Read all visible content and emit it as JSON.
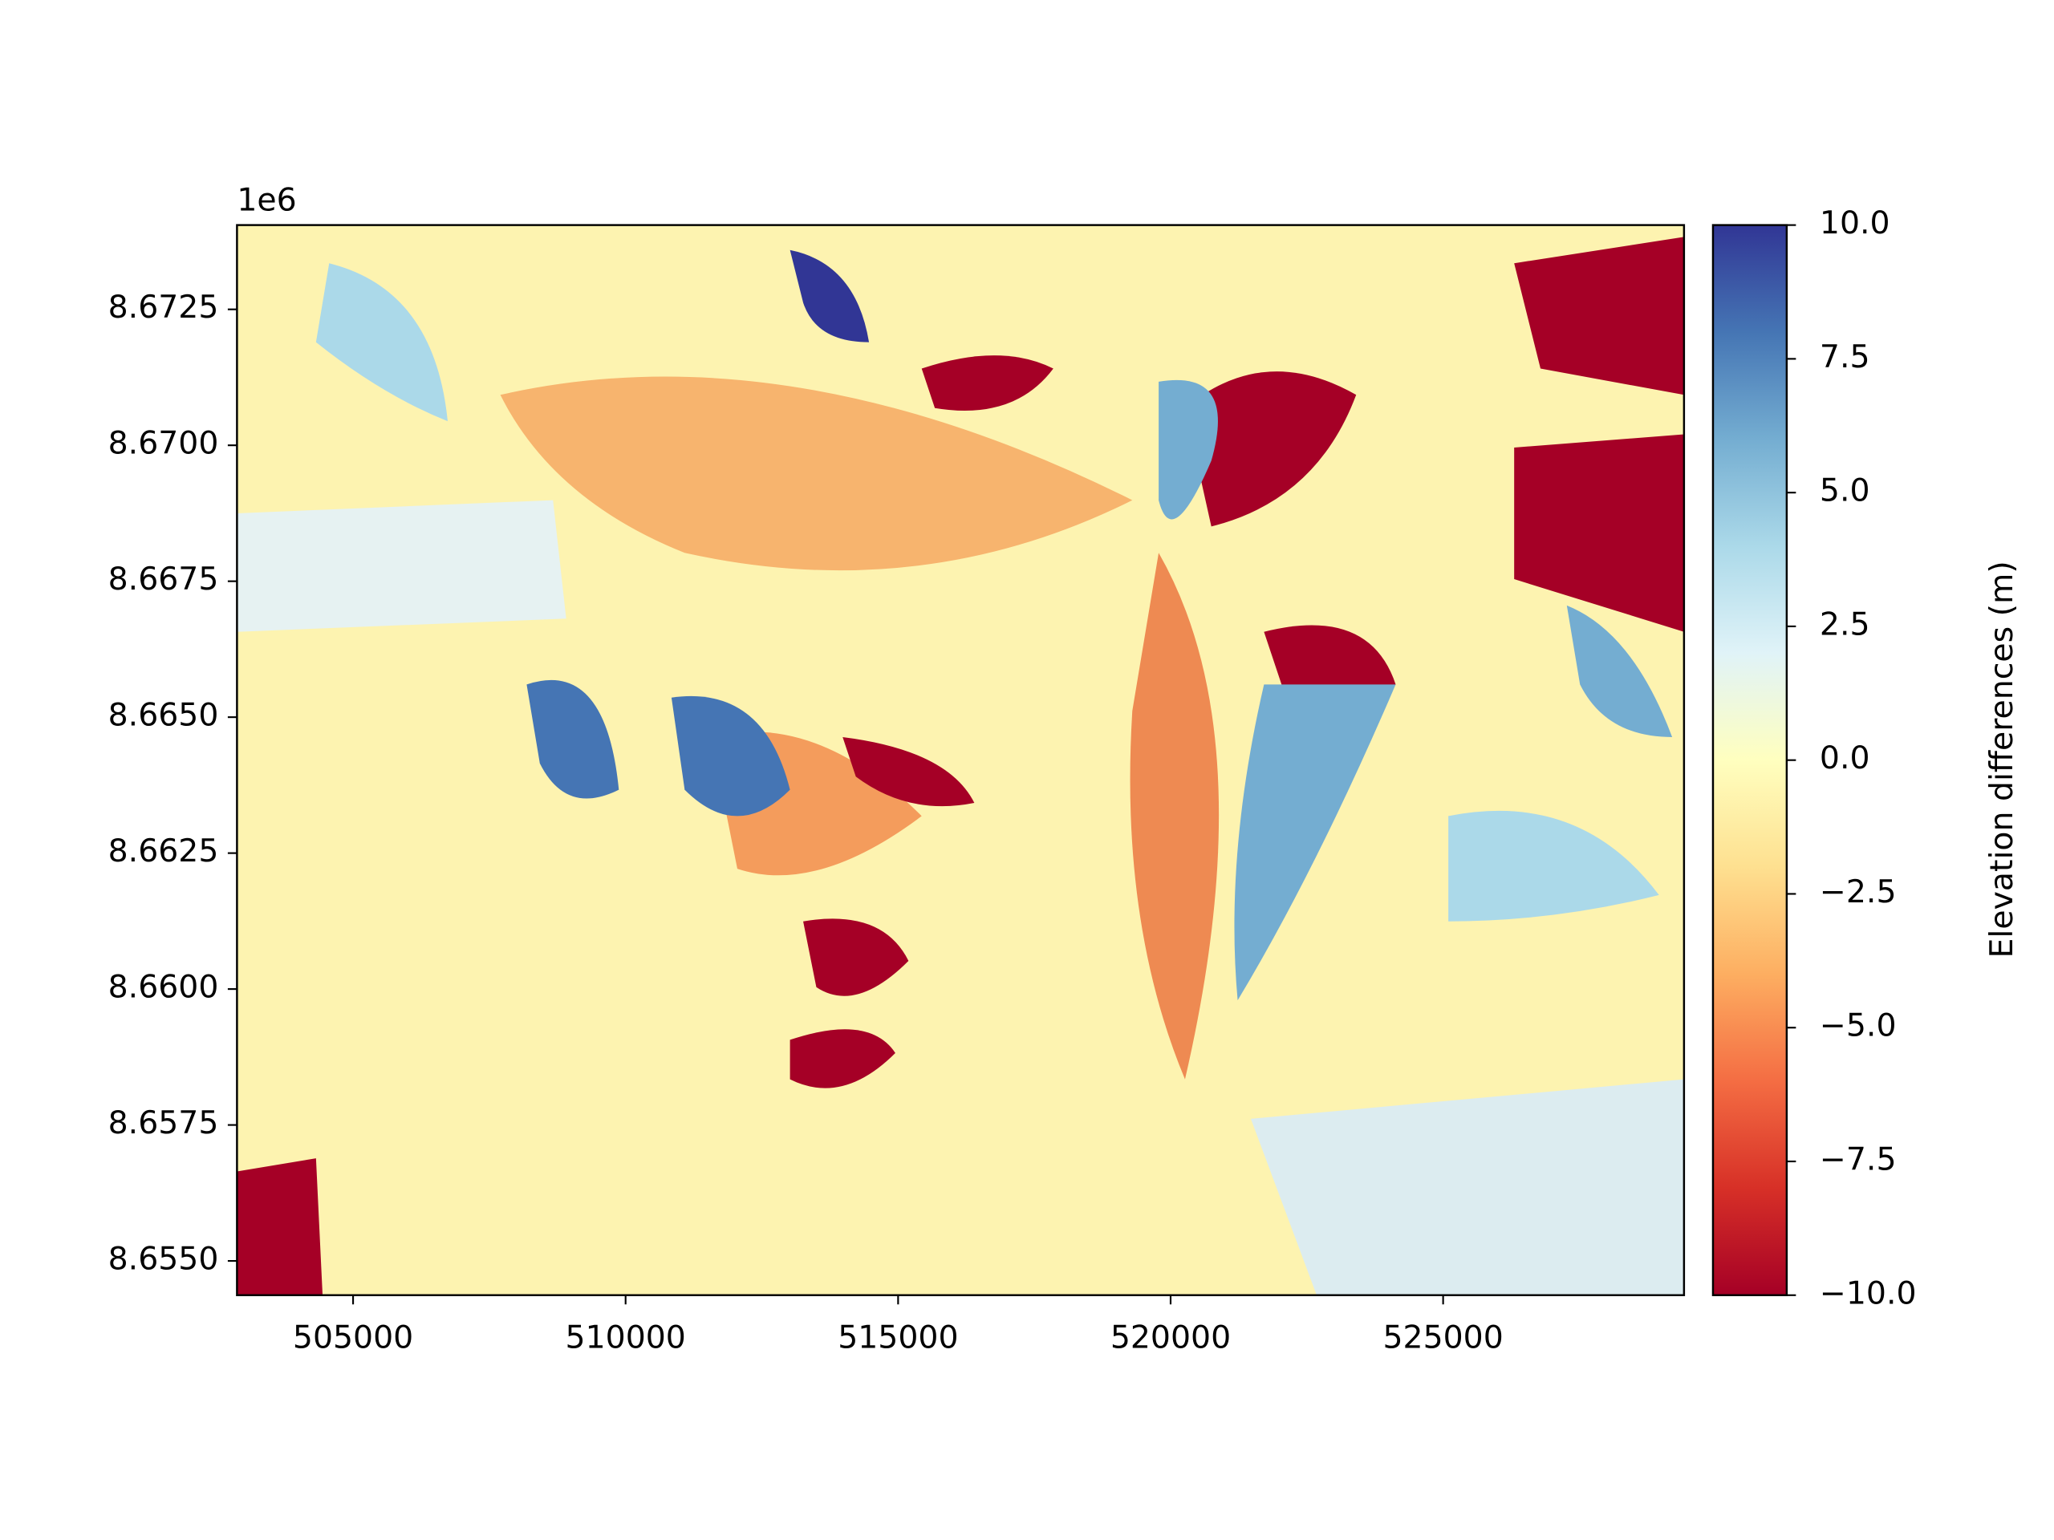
{
  "chart_data": {
    "type": "image",
    "y_offset_label": "1e6",
    "xlim": [
      502870,
      529420
    ],
    "xticks": [
      505000,
      510000,
      515000,
      520000,
      525000
    ],
    "ylim": [
      8654370,
      8674050
    ],
    "yticks": [
      {
        "value": 8655000,
        "label": "8.6550"
      },
      {
        "value": 8657500,
        "label": "8.6575"
      },
      {
        "value": 8660000,
        "label": "8.6600"
      },
      {
        "value": 8662500,
        "label": "8.6625"
      },
      {
        "value": 8665000,
        "label": "8.6650"
      },
      {
        "value": 8667500,
        "label": "8.6675"
      },
      {
        "value": 8670000,
        "label": "8.6700"
      },
      {
        "value": 8672500,
        "label": "8.6725"
      }
    ],
    "colorbar": {
      "label": "Elevation differences (m)",
      "lim": [
        -10,
        10
      ],
      "colors": [
        "#a50026",
        "#d73027",
        "#f46d43",
        "#fdae61",
        "#fee090",
        "#ffffbf",
        "#e0f3f8",
        "#abd9e9",
        "#74add1",
        "#4575b4",
        "#313695"
      ],
      "ticks": [
        {
          "value": -10,
          "label": "−10.0"
        },
        {
          "value": -7.5,
          "label": "−7.5"
        },
        {
          "value": -5,
          "label": "−5.0"
        },
        {
          "value": -2.5,
          "label": "−2.5"
        },
        {
          "value": 0,
          "label": "0.0"
        },
        {
          "value": 2.5,
          "label": "2.5"
        },
        {
          "value": 5,
          "label": "5.0"
        },
        {
          "value": 7.5,
          "label": "7.5"
        },
        {
          "value": 10,
          "label": "10.0"
        }
      ]
    }
  }
}
